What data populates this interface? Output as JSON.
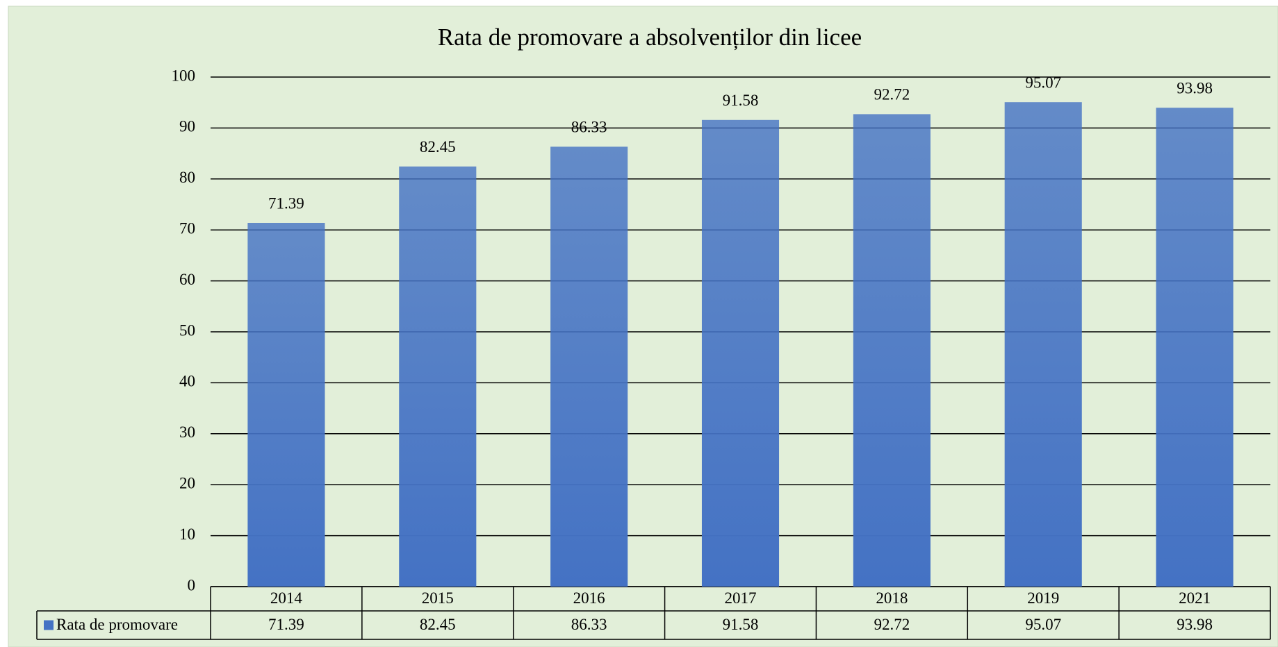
{
  "chart_data": {
    "type": "bar",
    "title": "Rata de promovare a absolvenților din licee",
    "categories": [
      "2014",
      "2015",
      "2016",
      "2017",
      "2018",
      "2019",
      "2021"
    ],
    "series": [
      {
        "name": "Rata de promovare",
        "color": "#4472c4",
        "values": [
          71.39,
          82.45,
          86.33,
          91.58,
          92.72,
          95.07,
          93.98
        ]
      }
    ],
    "ylim": [
      0,
      100
    ],
    "yticks": [
      0,
      10,
      20,
      30,
      40,
      50,
      60,
      70,
      80,
      90,
      100
    ],
    "grid": true,
    "data_table": true
  }
}
